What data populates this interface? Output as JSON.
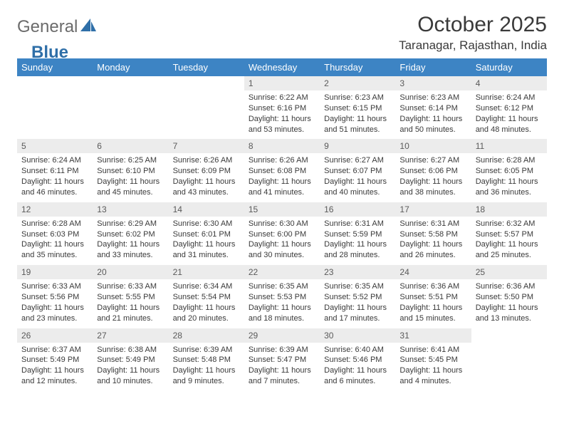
{
  "logo": {
    "text1": "General",
    "text2": "Blue"
  },
  "title": "October 2025",
  "location": "Taranagar, Rajasthan, India",
  "colors": {
    "header_bg": "#3d84c4",
    "header_text": "#ffffff",
    "daynum_bg": "#ececec",
    "border": "#3d6b99",
    "logo_gray": "#6b6b6b",
    "logo_blue": "#2f6fa8"
  },
  "day_names": [
    "Sunday",
    "Monday",
    "Tuesday",
    "Wednesday",
    "Thursday",
    "Friday",
    "Saturday"
  ],
  "weeks": [
    [
      {
        "n": "",
        "body": ""
      },
      {
        "n": "",
        "body": ""
      },
      {
        "n": "",
        "body": ""
      },
      {
        "n": "1",
        "body": "Sunrise: 6:22 AM\nSunset: 6:16 PM\nDaylight: 11 hours and 53 minutes."
      },
      {
        "n": "2",
        "body": "Sunrise: 6:23 AM\nSunset: 6:15 PM\nDaylight: 11 hours and 51 minutes."
      },
      {
        "n": "3",
        "body": "Sunrise: 6:23 AM\nSunset: 6:14 PM\nDaylight: 11 hours and 50 minutes."
      },
      {
        "n": "4",
        "body": "Sunrise: 6:24 AM\nSunset: 6:12 PM\nDaylight: 11 hours and 48 minutes."
      }
    ],
    [
      {
        "n": "5",
        "body": "Sunrise: 6:24 AM\nSunset: 6:11 PM\nDaylight: 11 hours and 46 minutes."
      },
      {
        "n": "6",
        "body": "Sunrise: 6:25 AM\nSunset: 6:10 PM\nDaylight: 11 hours and 45 minutes."
      },
      {
        "n": "7",
        "body": "Sunrise: 6:26 AM\nSunset: 6:09 PM\nDaylight: 11 hours and 43 minutes."
      },
      {
        "n": "8",
        "body": "Sunrise: 6:26 AM\nSunset: 6:08 PM\nDaylight: 11 hours and 41 minutes."
      },
      {
        "n": "9",
        "body": "Sunrise: 6:27 AM\nSunset: 6:07 PM\nDaylight: 11 hours and 40 minutes."
      },
      {
        "n": "10",
        "body": "Sunrise: 6:27 AM\nSunset: 6:06 PM\nDaylight: 11 hours and 38 minutes."
      },
      {
        "n": "11",
        "body": "Sunrise: 6:28 AM\nSunset: 6:05 PM\nDaylight: 11 hours and 36 minutes."
      }
    ],
    [
      {
        "n": "12",
        "body": "Sunrise: 6:28 AM\nSunset: 6:03 PM\nDaylight: 11 hours and 35 minutes."
      },
      {
        "n": "13",
        "body": "Sunrise: 6:29 AM\nSunset: 6:02 PM\nDaylight: 11 hours and 33 minutes."
      },
      {
        "n": "14",
        "body": "Sunrise: 6:30 AM\nSunset: 6:01 PM\nDaylight: 11 hours and 31 minutes."
      },
      {
        "n": "15",
        "body": "Sunrise: 6:30 AM\nSunset: 6:00 PM\nDaylight: 11 hours and 30 minutes."
      },
      {
        "n": "16",
        "body": "Sunrise: 6:31 AM\nSunset: 5:59 PM\nDaylight: 11 hours and 28 minutes."
      },
      {
        "n": "17",
        "body": "Sunrise: 6:31 AM\nSunset: 5:58 PM\nDaylight: 11 hours and 26 minutes."
      },
      {
        "n": "18",
        "body": "Sunrise: 6:32 AM\nSunset: 5:57 PM\nDaylight: 11 hours and 25 minutes."
      }
    ],
    [
      {
        "n": "19",
        "body": "Sunrise: 6:33 AM\nSunset: 5:56 PM\nDaylight: 11 hours and 23 minutes."
      },
      {
        "n": "20",
        "body": "Sunrise: 6:33 AM\nSunset: 5:55 PM\nDaylight: 11 hours and 21 minutes."
      },
      {
        "n": "21",
        "body": "Sunrise: 6:34 AM\nSunset: 5:54 PM\nDaylight: 11 hours and 20 minutes."
      },
      {
        "n": "22",
        "body": "Sunrise: 6:35 AM\nSunset: 5:53 PM\nDaylight: 11 hours and 18 minutes."
      },
      {
        "n": "23",
        "body": "Sunrise: 6:35 AM\nSunset: 5:52 PM\nDaylight: 11 hours and 17 minutes."
      },
      {
        "n": "24",
        "body": "Sunrise: 6:36 AM\nSunset: 5:51 PM\nDaylight: 11 hours and 15 minutes."
      },
      {
        "n": "25",
        "body": "Sunrise: 6:36 AM\nSunset: 5:50 PM\nDaylight: 11 hours and 13 minutes."
      }
    ],
    [
      {
        "n": "26",
        "body": "Sunrise: 6:37 AM\nSunset: 5:49 PM\nDaylight: 11 hours and 12 minutes."
      },
      {
        "n": "27",
        "body": "Sunrise: 6:38 AM\nSunset: 5:49 PM\nDaylight: 11 hours and 10 minutes."
      },
      {
        "n": "28",
        "body": "Sunrise: 6:39 AM\nSunset: 5:48 PM\nDaylight: 11 hours and 9 minutes."
      },
      {
        "n": "29",
        "body": "Sunrise: 6:39 AM\nSunset: 5:47 PM\nDaylight: 11 hours and 7 minutes."
      },
      {
        "n": "30",
        "body": "Sunrise: 6:40 AM\nSunset: 5:46 PM\nDaylight: 11 hours and 6 minutes."
      },
      {
        "n": "31",
        "body": "Sunrise: 6:41 AM\nSunset: 5:45 PM\nDaylight: 11 hours and 4 minutes."
      },
      {
        "n": "",
        "body": ""
      }
    ]
  ]
}
